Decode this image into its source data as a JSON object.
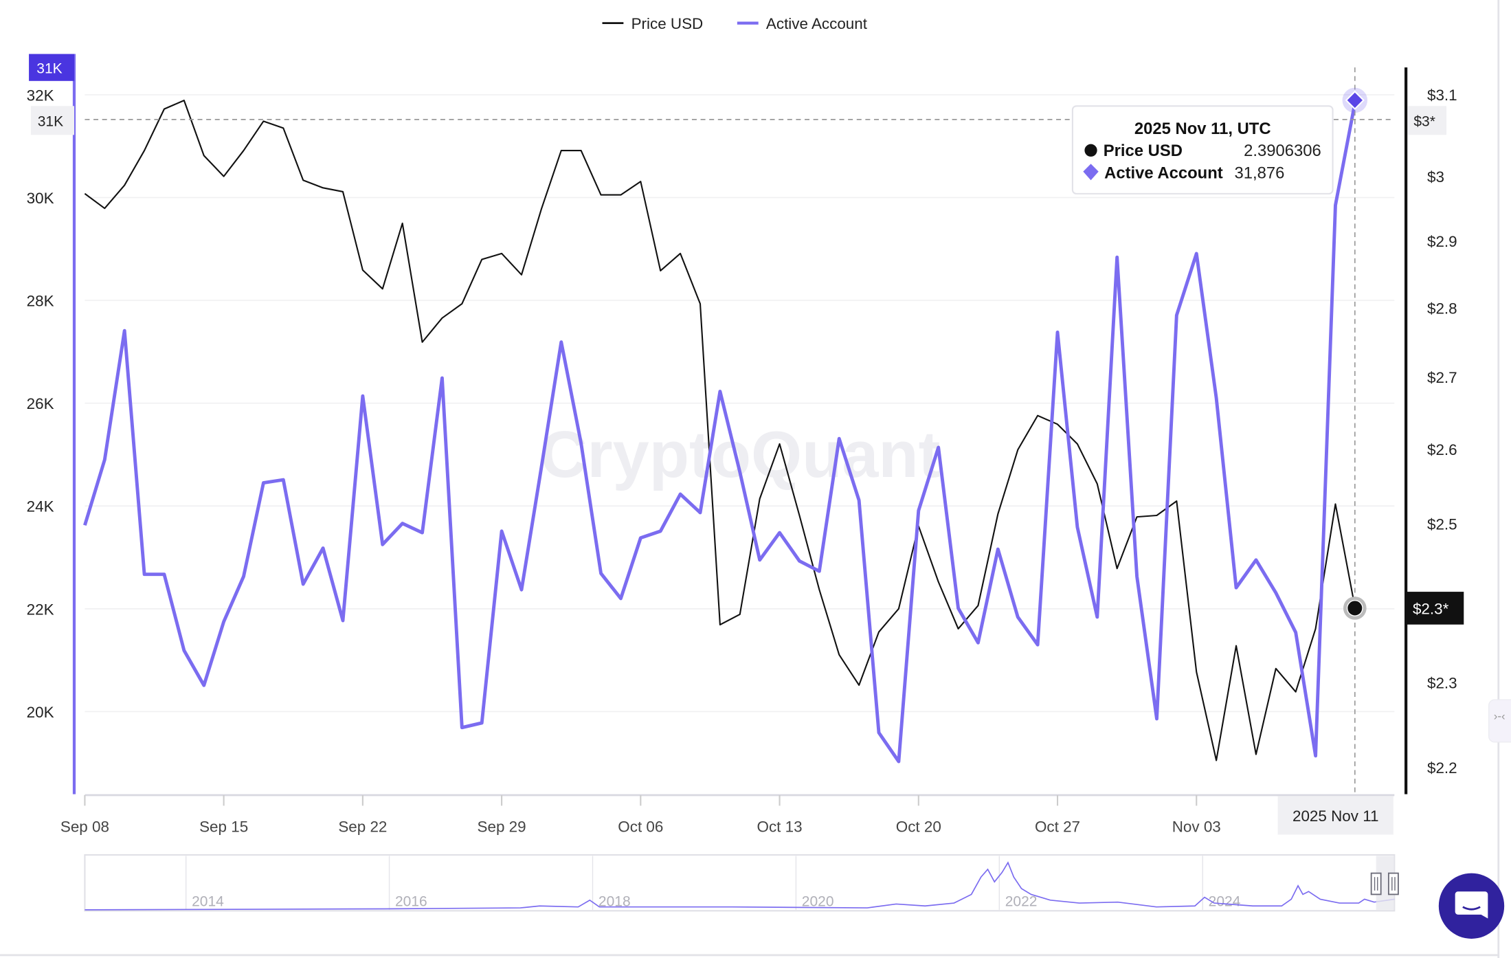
{
  "legend": [
    {
      "label": "Price USD",
      "color": "#111111"
    },
    {
      "label": "Active Account",
      "color": "#7b6cf0"
    }
  ],
  "watermark": "CryptoQuant",
  "tooltip": {
    "title": "2025 Nov 11, UTC",
    "rows": [
      {
        "label": "Price USD",
        "value": "2.3906306",
        "marker": "circle"
      },
      {
        "label": "Active Account",
        "value": "31,876",
        "marker": "diamond"
      }
    ]
  },
  "crosshair": {
    "left_label": "31K",
    "left_label_hidden": "31K",
    "right_label": "$3*",
    "right_price_label": "$2.3*",
    "bottom_label": "2025 Nov 11"
  },
  "navigator": {
    "years": [
      "2014",
      "2016",
      "2018",
      "2020",
      "2022",
      "2024"
    ]
  },
  "colors": {
    "price": "#111111",
    "active": "#7b6cf0",
    "accent": "#4a35e0",
    "chat": "#30229e"
  },
  "chart_data": {
    "type": "line",
    "x_start": "2025-09-08",
    "x_end": "2025-11-11",
    "x_ticks": [
      "Sep 08",
      "Sep 15",
      "Sep 22",
      "Sep 29",
      "Oct 06",
      "Oct 13",
      "Oct 20",
      "Oct 27",
      "Nov 03"
    ],
    "y_left": {
      "ticks": [
        "20K",
        "22K",
        "24K",
        "26K",
        "28K",
        "30K",
        "32K"
      ],
      "tick_values": [
        20000,
        22000,
        24000,
        26000,
        28000,
        30000,
        32000
      ],
      "range": [
        18500,
        33300
      ],
      "scale": "linear"
    },
    "y_right": {
      "ticks": [
        "$2.2",
        "$2.3",
        "$2.5",
        "$2.6",
        "$2.7",
        "$2.8",
        "$2.9",
        "$3",
        "$3.1"
      ],
      "tick_values": [
        2.2,
        2.3,
        2.5,
        2.6,
        2.7,
        2.8,
        2.9,
        3.0,
        3.1
      ],
      "range": [
        2.15,
        3.35
      ],
      "scale": "log"
    },
    "grid": true,
    "legend_position": "top",
    "series": [
      {
        "name": "Price USD",
        "axis": "right",
        "color": "#111111",
        "values": [
          2.973,
          2.95,
          2.986,
          3.041,
          3.108,
          3.122,
          3.033,
          3.0,
          3.041,
          3.088,
          3.077,
          2.994,
          2.982,
          2.976,
          2.856,
          2.828,
          2.927,
          2.75,
          2.785,
          2.806,
          2.872,
          2.881,
          2.849,
          2.949,
          3.041,
          3.041,
          2.971,
          2.971,
          2.992,
          2.855,
          2.881,
          2.806,
          2.371,
          2.384,
          2.533,
          2.607,
          2.511,
          2.415,
          2.334,
          2.297,
          2.362,
          2.391,
          2.497,
          2.425,
          2.366,
          2.395,
          2.513,
          2.599,
          2.646,
          2.634,
          2.607,
          2.553,
          2.442,
          2.509,
          2.511,
          2.53,
          2.313,
          2.208,
          2.345,
          2.215,
          2.317,
          2.289,
          2.366,
          2.526,
          2.3906
        ]
      },
      {
        "name": "Active Account",
        "axis": "left",
        "color": "#7b6cf0",
        "values": [
          23625,
          24900,
          27410,
          22670,
          22670,
          21190,
          20510,
          21750,
          22630,
          24450,
          24510,
          22480,
          23180,
          21770,
          26140,
          23250,
          23660,
          23480,
          26490,
          19690,
          19780,
          23510,
          22370,
          24750,
          27190,
          25220,
          22690,
          22200,
          23380,
          23510,
          24230,
          23870,
          26230,
          24660,
          22950,
          23480,
          22930,
          22730,
          25310,
          24110,
          19590,
          19030,
          23910,
          25140,
          22010,
          21340,
          23160,
          21840,
          21300,
          27380,
          23590,
          21840,
          28840,
          22630,
          19860,
          27710,
          28910,
          26100,
          22410,
          22950,
          22310,
          21540,
          19140,
          29850,
          31876
        ]
      }
    ]
  }
}
